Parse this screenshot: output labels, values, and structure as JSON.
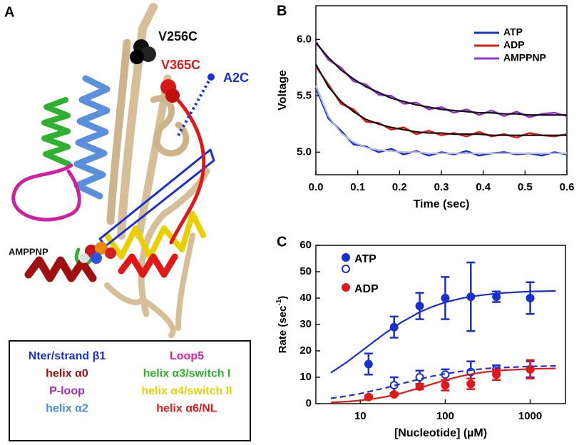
{
  "structure": {
    "panel_label": "A",
    "labels": [
      {
        "text": "V256C",
        "color": "#111111"
      },
      {
        "text": "V365C",
        "color": "#e01818"
      },
      {
        "text": "A2C",
        "color": "#1a2fd0"
      },
      {
        "text": "AMPPNP",
        "color": "#111111"
      }
    ],
    "key": [
      {
        "text": "Nter/strand β1",
        "color": "#1a2fd0"
      },
      {
        "text": "helix α0",
        "color": "#a01010"
      },
      {
        "text": "P-loop",
        "color": "#9b30b0"
      },
      {
        "text": "helix α2",
        "color": "#4a8ae0"
      },
      {
        "text": "Loop5",
        "color": "#e020a0"
      },
      {
        "text": "helix α3/switch I",
        "color": "#30b030"
      },
      {
        "text": "helix α4/switch II",
        "color": "#e8d000"
      },
      {
        "text": "helix α6/NL",
        "color": "#e01818"
      }
    ]
  },
  "chart_data": [
    {
      "type": "line",
      "panel_label": "B",
      "x_label": "Time (sec)",
      "y_label": "Voltage",
      "legend": "upper right",
      "xlim": [
        0,
        0.6
      ],
      "ylim": [
        4.8,
        6.3
      ],
      "xticks": [
        {
          "value": 0,
          "label": "0.0"
        },
        0.1,
        0.2,
        0.3,
        0.4,
        0.5,
        0.6
      ],
      "yticks": [
        {
          "value": 5,
          "label": "5.0"
        },
        5.5,
        {
          "value": 6,
          "label": "6.0"
        }
      ],
      "x": [
        0,
        0.03,
        0.06,
        0.09,
        0.12,
        0.15,
        0.18,
        0.21,
        0.24,
        0.27,
        0.3,
        0.33,
        0.36,
        0.39,
        0.42,
        0.45,
        0.48,
        0.51,
        0.54,
        0.57,
        0.6
      ],
      "series": [
        {
          "name": "ATP",
          "color": "#1a2fd0",
          "values": [
            5.57,
            5.3,
            5.19,
            5.07,
            5.05,
            5.0,
            5.03,
            4.98,
            5.01,
            4.97,
            5.0,
            4.98,
            5.01,
            4.97,
            4.99,
            5.0,
            4.98,
            4.99,
            4.97,
            5.0,
            4.98
          ]
        },
        {
          "name": "ADP",
          "color": "#e01818",
          "values": [
            5.76,
            5.6,
            5.43,
            5.38,
            5.27,
            5.26,
            5.2,
            5.22,
            5.16,
            5.19,
            5.15,
            5.17,
            5.14,
            5.18,
            5.14,
            5.16,
            5.13,
            5.17,
            5.15,
            5.14,
            5.16
          ]
        },
        {
          "name": "AMPPNP",
          "color": "#9b30d0",
          "values": [
            5.98,
            5.82,
            5.75,
            5.63,
            5.6,
            5.51,
            5.5,
            5.43,
            5.44,
            5.38,
            5.4,
            5.35,
            5.38,
            5.33,
            5.37,
            5.32,
            5.36,
            5.31,
            5.34,
            5.35,
            5.32
          ]
        },
        {
          "color": "#b4bcd8",
          "values": [
            5.59,
            5.32,
            5.17,
            5.09,
            5.04,
            5.02,
            5.01,
            5.0,
            5.0,
            4.99,
            4.99,
            4.99,
            4.99,
            4.99,
            4.99,
            4.99,
            4.99,
            4.99,
            4.99,
            4.99,
            4.99
          ]
        },
        {
          "color": "#111111",
          "values": [
            5.78,
            5.58,
            5.45,
            5.36,
            5.29,
            5.25,
            5.22,
            5.2,
            5.18,
            5.17,
            5.17,
            5.16,
            5.16,
            5.16,
            5.15,
            5.15,
            5.15,
            5.15,
            5.15,
            5.15,
            5.15
          ]
        },
        {
          "color": "#111111",
          "values": [
            5.97,
            5.84,
            5.73,
            5.65,
            5.58,
            5.53,
            5.48,
            5.45,
            5.42,
            5.4,
            5.38,
            5.37,
            5.36,
            5.35,
            5.35,
            5.34,
            5.34,
            5.33,
            5.33,
            5.33,
            5.33
          ]
        }
      ]
    },
    {
      "type": "scatter",
      "panel_label": "C",
      "x_label": "[Nucleotide] (µM)",
      "y_label": [
        "Rate (sec",
        "-1",
        ")"
      ],
      "legend": "upper left",
      "xscale": "log",
      "xlim": [
        3,
        2600
      ],
      "ylim": [
        0,
        60
      ],
      "xticks": [
        10,
        100,
        1000
      ],
      "yticks": [
        0,
        10,
        20,
        30,
        40,
        50,
        60
      ],
      "series": [
        {
          "name": "ATP",
          "color": "#1a2fd0",
          "marker": "filled",
          "x": [
            12.5,
            25,
            50,
            100,
            200,
            400,
            1000
          ],
          "values": [
            15,
            29,
            37,
            40,
            40.5,
            40.5,
            40
          ],
          "errors": [
            4,
            4,
            5,
            8,
            13,
            2,
            6
          ]
        },
        {
          "color": "#1a2fd0",
          "marker": "open",
          "x": [
            25,
            50,
            100,
            200,
            400,
            1000
          ],
          "values": [
            7,
            10,
            11,
            12,
            13,
            13
          ],
          "errors": [
            3,
            2.5,
            2,
            4,
            1.5,
            3
          ]
        },
        {
          "name": "ADP",
          "color": "#e01818",
          "marker": "filled",
          "x": [
            12.5,
            25,
            50,
            100,
            200,
            400,
            1000
          ],
          "values": [
            2.5,
            3.5,
            6.5,
            7,
            7.5,
            11,
            13
          ],
          "errors": [
            0.5,
            0.5,
            1,
            2,
            2,
            2,
            3.5
          ]
        },
        {
          "color": "#1a2fd0",
          "x": [
            4.5,
            7,
            10,
            15,
            20,
            30,
            50,
            70,
            100,
            150,
            200,
            300,
            500,
            1000,
            2000
          ],
          "values": [
            11.7,
            15.8,
            19.6,
            23.9,
            26.9,
            30.7,
            34.7,
            36.7,
            38.4,
            39.8,
            40.6,
            41.3,
            42.0,
            42.5,
            42.7
          ]
        },
        {
          "color": "#1a2fd0",
          "dashed": true,
          "x": [
            4.5,
            7,
            10,
            15,
            20,
            30,
            50,
            70,
            100,
            150,
            200,
            300,
            500,
            1000,
            2000
          ],
          "values": [
            2.0,
            2.9,
            3.8,
            5.1,
            6.0,
            7.5,
            9.3,
            10.4,
            11.3,
            12.2,
            12.7,
            13.3,
            13.7,
            14.1,
            14.3
          ]
        },
        {
          "color": "#e01818",
          "x": [
            4.5,
            7,
            10,
            15,
            20,
            30,
            50,
            70,
            100,
            150,
            200,
            300,
            500,
            1000,
            2000
          ],
          "values": [
            0.45,
            0.78,
            1.19,
            1.91,
            2.61,
            3.9,
            5.95,
            7.42,
            8.91,
            10.35,
            11.16,
            12.02,
            12.69,
            13.16,
            13.36
          ]
        }
      ]
    }
  ]
}
